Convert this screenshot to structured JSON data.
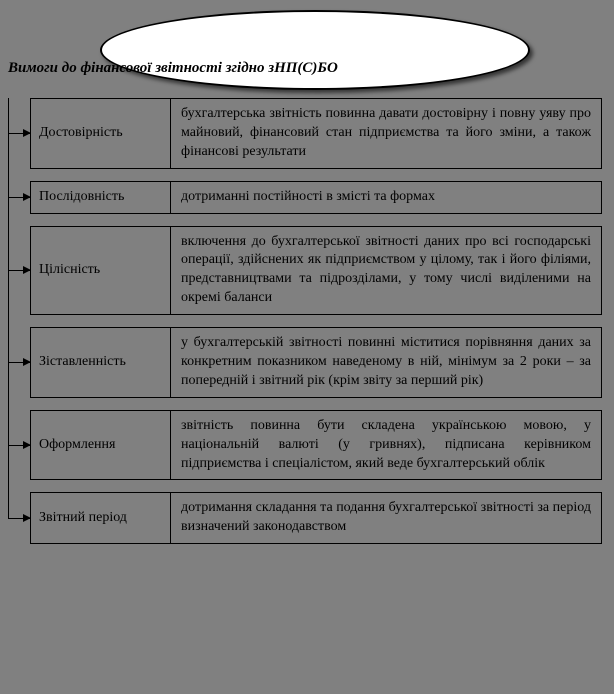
{
  "diagram": {
    "type": "flowchart",
    "title": "Вимоги до фінансової звітності згідно зНП(С)БО",
    "background_color": "#808080",
    "ellipse": {
      "fill": "#ffffff",
      "stroke": "#000000",
      "shadow": true
    },
    "row_border_color": "#000000",
    "text_color": "#000000",
    "font": "Georgia, Times New Roman, serif",
    "title_fontsize": 15,
    "cell_fontsize": 14,
    "rows": [
      {
        "term": "Достовірність",
        "desc": "бухгалтерська звітність повинна давати достовірну і повну уяву про майновий, фінансовий стан підприємства та його зміни, а також фінансові результати"
      },
      {
        "term": "Послідовність",
        "desc": "дотриманні постійності в змісті та формах"
      },
      {
        "term": "Цілісність",
        "desc": "включення до бухгалтерської звітності даних про всі господарські операції, здійснених як підприємством у цілому, так і його філіями, представництвами та підрозділами, у тому числі виділеними на окремі баланси"
      },
      {
        "term": "Зіставленність",
        "desc": "у бухгалтерській звітності повинні міститися порівняння даних за конкретним показником наведеному в ній, мінімум за 2 роки – за попередній і звітний рік (крім звіту за перший рік)"
      },
      {
        "term": "Оформлення",
        "desc": "звітність повинна бути складена українською мовою, у національній валюті (у гривнях), підписана керівником підприємства і спеціалістом, який веде бухгалтерський облік"
      },
      {
        "term": "Звітний період",
        "desc": "дотримання складання та подання бухгалтерської звітності за період визначений законодавством"
      }
    ]
  }
}
